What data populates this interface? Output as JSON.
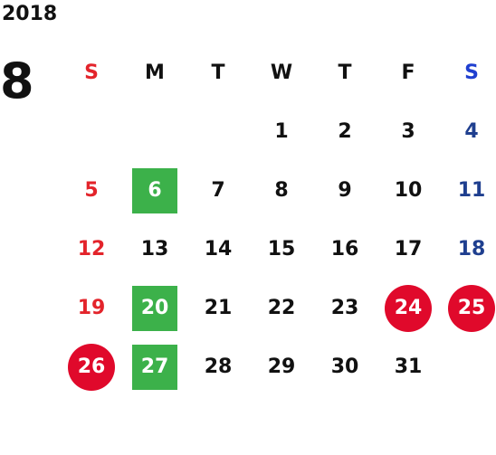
{
  "calendar": {
    "year": "2018",
    "month": "8",
    "weekdays": [
      "S",
      "M",
      "T",
      "W",
      "T",
      "F",
      "S"
    ],
    "weeks": [
      [
        "",
        "",
        "",
        "1",
        "2",
        "3",
        "4"
      ],
      [
        "5",
        "6",
        "7",
        "8",
        "9",
        "10",
        "11"
      ],
      [
        "12",
        "13",
        "14",
        "15",
        "16",
        "17",
        "18"
      ],
      [
        "19",
        "20",
        "21",
        "22",
        "23",
        "24",
        "25"
      ],
      [
        "26",
        "27",
        "28",
        "29",
        "30",
        "31",
        ""
      ]
    ],
    "green_marked_days": [
      "6",
      "20",
      "27"
    ],
    "red_circled_days": [
      "24",
      "25",
      "26"
    ]
  },
  "colors": {
    "sunday_text": "#e3242b",
    "saturday_text": "#1f3f8f",
    "green_mark": "#3cb14a",
    "red_circle": "#e0092b"
  }
}
